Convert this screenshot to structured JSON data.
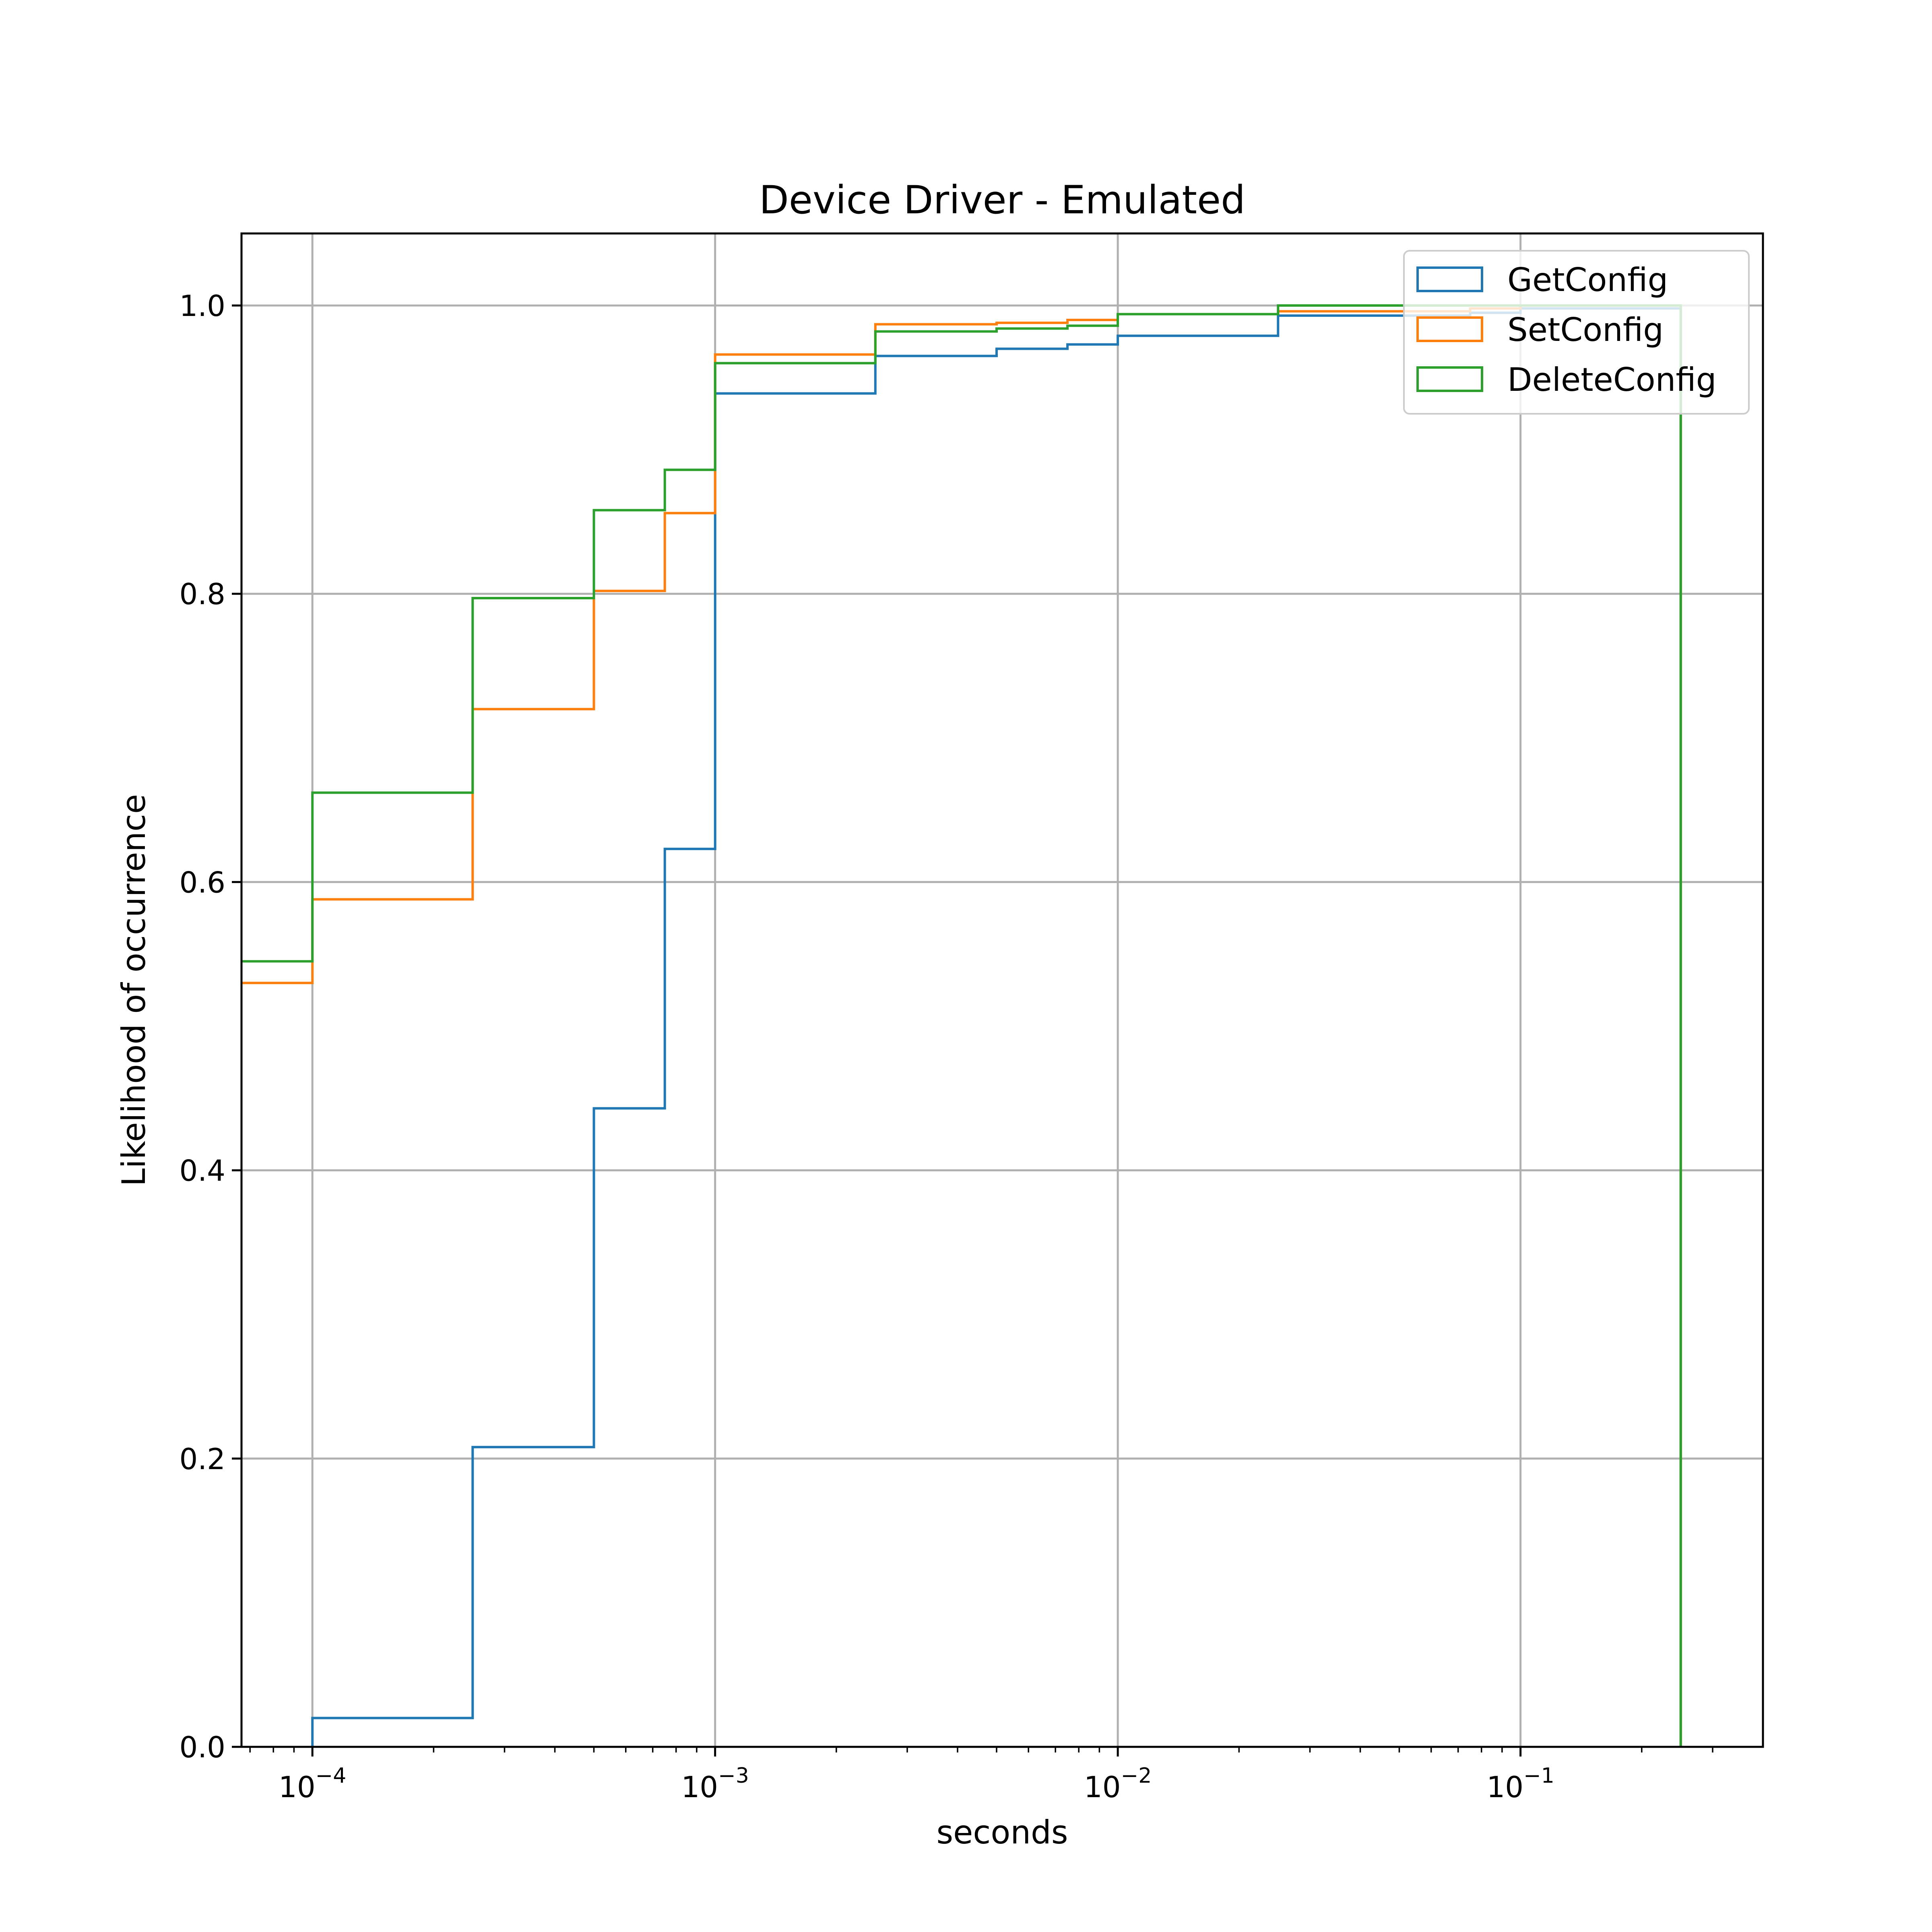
{
  "chart_data": {
    "type": "line",
    "subtype": "cumulative step histogram",
    "title": "Device Driver - Emulated",
    "xlabel": "seconds",
    "ylabel": "Likelihood of occurrence",
    "xscale": "log",
    "xlim": [
      6.667e-05,
      0.4
    ],
    "ylim": [
      0.0,
      1.05
    ],
    "grid": true,
    "legend_position": "top-right",
    "x_ticks": [
      {
        "value": 0.0001,
        "base": "10",
        "exp": "−4"
      },
      {
        "value": 0.001,
        "base": "10",
        "exp": "−3"
      },
      {
        "value": 0.01,
        "base": "10",
        "exp": "−2"
      },
      {
        "value": 0.1,
        "base": "10",
        "exp": "−1"
      }
    ],
    "y_ticks": [
      {
        "value": 0.0,
        "label": "0.0"
      },
      {
        "value": 0.2,
        "label": "0.2"
      },
      {
        "value": 0.4,
        "label": "0.4"
      },
      {
        "value": 0.6,
        "label": "0.6"
      },
      {
        "value": 0.8,
        "label": "0.8"
      },
      {
        "value": 1.0,
        "label": "1.0"
      }
    ],
    "bin_edges": [
      0.0001,
      0.00025,
      0.0005,
      0.00075,
      0.001,
      0.0025,
      0.005,
      0.0075,
      0.01,
      0.025,
      0.05,
      0.075,
      0.1,
      0.25
    ],
    "series": [
      {
        "name": "GetConfig",
        "color": "#1f77b4",
        "start_value": 0.0,
        "values": [
          0.02,
          0.208,
          0.443,
          0.623,
          0.939,
          0.965,
          0.97,
          0.973,
          0.979,
          0.993,
          0.993,
          0.995,
          0.998
        ]
      },
      {
        "name": "SetConfig",
        "color": "#ff7f0e",
        "start_value": 0.53,
        "values": [
          0.588,
          0.72,
          0.802,
          0.856,
          0.966,
          0.987,
          0.988,
          0.99,
          0.994,
          0.996,
          0.996,
          0.998,
          1.0
        ]
      },
      {
        "name": "DeleteConfig",
        "color": "#2ca02c",
        "start_value": 0.545,
        "values": [
          0.662,
          0.797,
          0.858,
          0.886,
          0.96,
          0.982,
          0.984,
          0.986,
          0.994,
          1.0,
          1.0,
          1.0,
          1.0
        ]
      }
    ]
  }
}
